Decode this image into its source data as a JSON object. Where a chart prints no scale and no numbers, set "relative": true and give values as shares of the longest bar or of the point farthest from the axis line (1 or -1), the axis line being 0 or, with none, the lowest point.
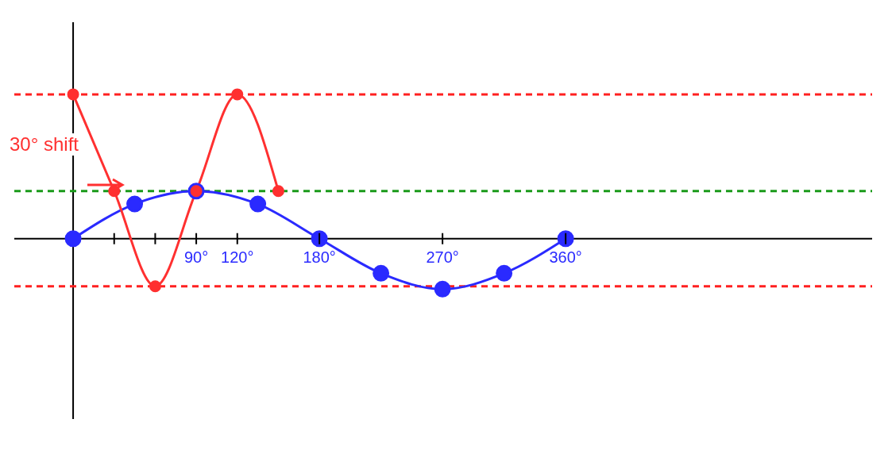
{
  "chart_data": {
    "type": "line",
    "relative": true,
    "xlim": [
      -43,
      584
    ],
    "xticks": [
      {
        "value": 30,
        "label": null
      },
      {
        "value": 60,
        "label": null
      },
      {
        "value": 90,
        "label": "90°"
      },
      {
        "value": 120,
        "label": "120°"
      },
      {
        "value": 180,
        "label": "180°"
      },
      {
        "value": 270,
        "label": "270°"
      },
      {
        "value": 360,
        "label": "360°"
      }
    ],
    "series": [
      {
        "color": "#2a2aff",
        "x": [
          0,
          45,
          90,
          135,
          180,
          225,
          270,
          315,
          360
        ],
        "values": [
          0,
          0.24,
          0.33,
          0.24,
          0,
          -0.24,
          -0.35,
          -0.24,
          0
        ]
      },
      {
        "color": "#ff3030",
        "x": [
          0,
          30,
          60,
          90,
          120,
          150
        ],
        "values": [
          1,
          0.33,
          -0.33,
          0.33,
          1,
          0.33
        ]
      }
    ],
    "ref_lines": [
      {
        "axis": "y",
        "value": 1,
        "color": "#ff2020",
        "line_style": "dashed"
      },
      {
        "axis": "y",
        "value": 0.33,
        "color": "#1a9a1a",
        "line_style": "dashed"
      },
      {
        "axis": "y",
        "value": -0.33,
        "color": "#ff2020",
        "line_style": "dashed"
      }
    ],
    "annotations": [
      "30° shift"
    ],
    "marker": "circle",
    "line_style": "solid"
  }
}
